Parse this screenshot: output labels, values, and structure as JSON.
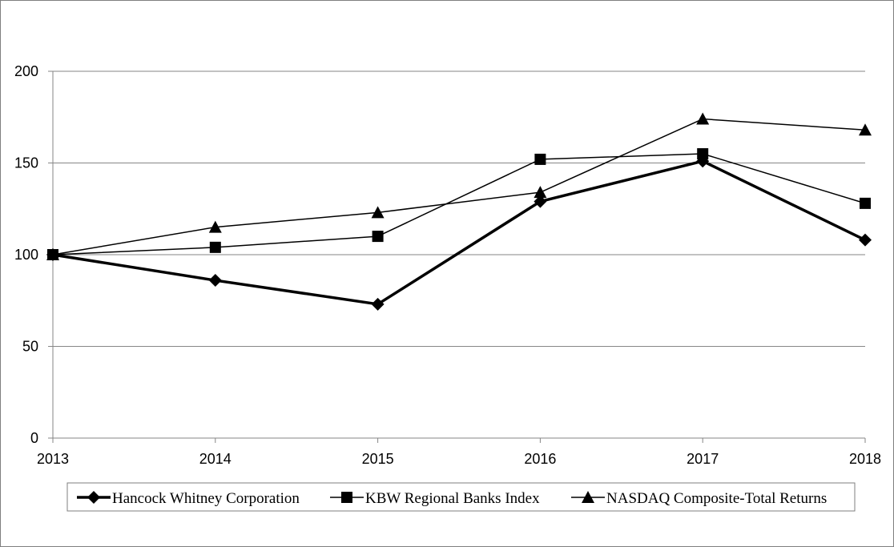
{
  "chart_data": {
    "type": "line",
    "title": "",
    "xlabel": "",
    "ylabel": "",
    "x": [
      "2013",
      "2014",
      "2015",
      "2016",
      "2017",
      "2018"
    ],
    "ylim": [
      0,
      200
    ],
    "yticks": [
      0,
      50,
      100,
      150,
      200
    ],
    "grid": "horizontal",
    "legend_position": "bottom",
    "series": [
      {
        "name": "Hancock Whitney Corporation",
        "marker": "diamond",
        "color": "#000000",
        "weight": "bold",
        "values": [
          100,
          86,
          73,
          129,
          151,
          108
        ]
      },
      {
        "name": "KBW Regional Banks Index",
        "marker": "square",
        "color": "#000000",
        "weight": "normal",
        "values": [
          100,
          104,
          110,
          152,
          155,
          128
        ]
      },
      {
        "name": "NASDAQ Composite-Total Returns",
        "marker": "triangle",
        "color": "#000000",
        "weight": "normal",
        "values": [
          100,
          115,
          123,
          134,
          174,
          168
        ]
      }
    ]
  }
}
